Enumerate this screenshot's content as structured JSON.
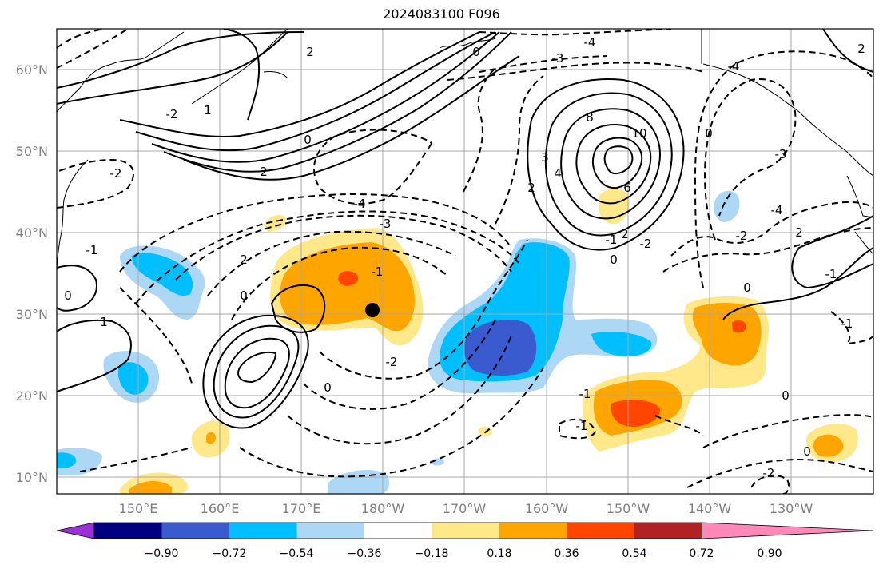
{
  "title": "2024083100 F096",
  "map": {
    "lat_labels": [
      "60°N",
      "50°N",
      "40°N",
      "30°N",
      "20°N",
      "10°N"
    ],
    "lon_labels": [
      "150°E",
      "160°E",
      "170°E",
      "180°W",
      "170°W",
      "160°W",
      "150°W",
      "140°W",
      "130°W"
    ],
    "contour_labels": [
      "-4",
      "-3",
      "0",
      "2",
      "0",
      "-4",
      "-3",
      "-1",
      "2",
      "0",
      "0",
      "-2",
      "-1",
      "-1",
      "0",
      "-2",
      "1",
      "-1",
      "-2",
      "1",
      "-2",
      "2",
      "0",
      "-2",
      "-1",
      "0",
      "-3",
      "-4",
      "2",
      "6",
      "8",
      "10",
      "4",
      "3",
      "2",
      "-2",
      "2",
      "0",
      "0",
      "-1",
      "-4",
      "2",
      "-1",
      "0"
    ],
    "marker": "filled-circle"
  },
  "colorbar": {
    "tick_labels": [
      "−0.90",
      "−0.72",
      "−0.54",
      "−0.36",
      "−0.18",
      "0.18",
      "0.36",
      "0.54",
      "0.72",
      "0.90"
    ],
    "colors": [
      "#9b30d8",
      "#000080",
      "#3a5bd0",
      "#00bfff",
      "#add8f5",
      "#ffffff",
      "#ffe88a",
      "#ffa500",
      "#ff4500",
      "#b22222",
      "#ff88b8"
    ]
  }
}
